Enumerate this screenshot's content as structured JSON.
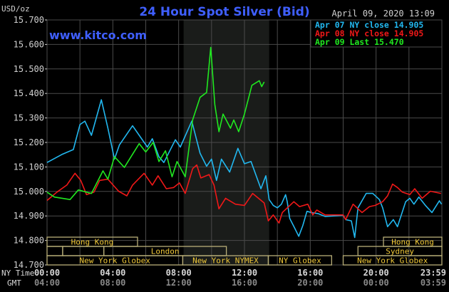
{
  "header": {
    "title": "24 Hour Spot Silver (Bid)",
    "timestamp": "April 09, 2020 13:09",
    "watermark": "www.kitco.com",
    "unit": "USD/oz"
  },
  "colors": {
    "background": "#000000",
    "title": "#3f5fff",
    "grid": "#4a4a4a",
    "shade": "#1a1c1a",
    "session_border": "#b8ae78",
    "session_text": "#f0c838",
    "apr07": "#22b8f0",
    "apr08": "#f01818",
    "apr09": "#20e820"
  },
  "chart_data": {
    "type": "line",
    "title": "24 Hour Spot Silver (Bid)",
    "ylabel": "USD/oz",
    "ylim": [
      14.7,
      15.7
    ],
    "yticks": [
      "15.700",
      "15.600",
      "15.500",
      "15.400",
      "15.300",
      "15.200",
      "15.100",
      "15.000",
      "14.900",
      "14.800",
      "14.700"
    ],
    "xlim_hours": [
      0,
      24
    ],
    "grid": true,
    "legend_placement": "top-right",
    "shaded_period_hours": [
      8.3,
      13.5
    ],
    "x_axis": {
      "rows": [
        {
          "label": "NY Time",
          "ticks": [
            "00:00",
            "04:00",
            "08:00",
            "12:00",
            "16:00",
            "20:00",
            "23:59"
          ]
        },
        {
          "label": "GMT",
          "ticks": [
            "04:00",
            "08:00",
            "12:00",
            "16:00",
            "20:00",
            "00:00",
            "03:59"
          ]
        }
      ]
    },
    "series": [
      {
        "name": "Apr 07 NY close 14.905",
        "color_key": "apr07",
        "points": [
          [
            0.0,
            15.118
          ],
          [
            0.9,
            15.151
          ],
          [
            1.6,
            15.171
          ],
          [
            2.0,
            15.273
          ],
          [
            2.3,
            15.287
          ],
          [
            2.7,
            15.229
          ],
          [
            3.3,
            15.374
          ],
          [
            3.7,
            15.258
          ],
          [
            4.1,
            15.132
          ],
          [
            4.4,
            15.19
          ],
          [
            5.2,
            15.268
          ],
          [
            6.1,
            15.181
          ],
          [
            6.4,
            15.215
          ],
          [
            6.8,
            15.142
          ],
          [
            7.1,
            15.118
          ],
          [
            7.8,
            15.211
          ],
          [
            8.1,
            15.181
          ],
          [
            8.8,
            15.287
          ],
          [
            9.3,
            15.156
          ],
          [
            9.7,
            15.103
          ],
          [
            10.0,
            15.132
          ],
          [
            10.3,
            15.045
          ],
          [
            10.6,
            15.132
          ],
          [
            11.1,
            15.079
          ],
          [
            11.6,
            15.176
          ],
          [
            12.0,
            15.113
          ],
          [
            12.4,
            15.122
          ],
          [
            13.0,
            15.011
          ],
          [
            13.3,
            15.064
          ],
          [
            13.5,
            14.967
          ],
          [
            13.75,
            14.943
          ],
          [
            14.0,
            14.933
          ],
          [
            14.25,
            14.948
          ],
          [
            14.5,
            14.987
          ],
          [
            14.6,
            14.958
          ],
          [
            14.75,
            14.89
          ],
          [
            15.05,
            14.851
          ],
          [
            15.3,
            14.817
          ],
          [
            15.55,
            14.861
          ],
          [
            15.8,
            14.919
          ],
          [
            16.05,
            14.914
          ],
          [
            16.5,
            14.909
          ],
          [
            16.9,
            14.898
          ],
          [
            18.0,
            14.902
          ],
          [
            18.15,
            14.885
          ],
          [
            18.5,
            14.88
          ],
          [
            18.7,
            14.812
          ],
          [
            18.9,
            14.933
          ],
          [
            19.4,
            14.992
          ],
          [
            19.8,
            14.992
          ],
          [
            20.2,
            14.967
          ],
          [
            20.4,
            14.933
          ],
          [
            20.7,
            14.856
          ],
          [
            21.05,
            14.885
          ],
          [
            21.3,
            14.856
          ],
          [
            21.8,
            14.958
          ],
          [
            22.05,
            14.972
          ],
          [
            22.3,
            14.948
          ],
          [
            22.6,
            14.977
          ],
          [
            23.0,
            14.943
          ],
          [
            23.4,
            14.914
          ],
          [
            23.85,
            14.962
          ],
          [
            23.98,
            14.948
          ]
        ]
      },
      {
        "name": "Apr 08 NY close 14.905",
        "color_key": "apr08",
        "points": [
          [
            0.0,
            14.963
          ],
          [
            0.6,
            14.997
          ],
          [
            1.2,
            15.026
          ],
          [
            1.7,
            15.074
          ],
          [
            2.05,
            15.045
          ],
          [
            2.4,
            14.987
          ],
          [
            2.85,
            14.997
          ],
          [
            3.2,
            15.045
          ],
          [
            3.7,
            15.05
          ],
          [
            4.35,
            15.001
          ],
          [
            4.85,
            14.982
          ],
          [
            5.2,
            15.026
          ],
          [
            5.9,
            15.074
          ],
          [
            6.4,
            15.026
          ],
          [
            6.75,
            15.064
          ],
          [
            7.25,
            15.011
          ],
          [
            7.7,
            15.016
          ],
          [
            8.05,
            15.035
          ],
          [
            8.4,
            14.992
          ],
          [
            8.85,
            15.093
          ],
          [
            9.1,
            15.108
          ],
          [
            9.35,
            15.055
          ],
          [
            9.85,
            15.069
          ],
          [
            10.15,
            15.026
          ],
          [
            10.45,
            14.929
          ],
          [
            10.85,
            14.972
          ],
          [
            11.45,
            14.948
          ],
          [
            12.0,
            14.943
          ],
          [
            12.5,
            14.992
          ],
          [
            13.2,
            14.953
          ],
          [
            13.45,
            14.88
          ],
          [
            13.75,
            14.904
          ],
          [
            14.1,
            14.871
          ],
          [
            14.3,
            14.914
          ],
          [
            15.0,
            14.958
          ],
          [
            15.35,
            14.938
          ],
          [
            15.85,
            14.948
          ],
          [
            16.15,
            14.904
          ],
          [
            16.4,
            14.924
          ],
          [
            16.9,
            14.904
          ],
          [
            18.0,
            14.904
          ],
          [
            18.15,
            14.885
          ],
          [
            18.6,
            14.948
          ],
          [
            19.15,
            14.914
          ],
          [
            19.6,
            14.938
          ],
          [
            19.95,
            14.943
          ],
          [
            20.4,
            14.958
          ],
          [
            20.7,
            14.982
          ],
          [
            21.0,
            15.03
          ],
          [
            21.3,
            15.016
          ],
          [
            21.6,
            14.997
          ],
          [
            22.05,
            14.987
          ],
          [
            22.35,
            15.011
          ],
          [
            22.8,
            14.972
          ],
          [
            23.3,
            15.001
          ],
          [
            23.95,
            14.992
          ]
        ]
      },
      {
        "name": "Apr 09 Last 15.470",
        "color_key": "apr09",
        "points": [
          [
            0.0,
            14.997
          ],
          [
            0.45,
            14.977
          ],
          [
            1.4,
            14.967
          ],
          [
            1.9,
            15.006
          ],
          [
            2.7,
            14.992
          ],
          [
            3.4,
            15.084
          ],
          [
            3.7,
            15.05
          ],
          [
            4.1,
            15.142
          ],
          [
            4.7,
            15.098
          ],
          [
            5.6,
            15.195
          ],
          [
            6.0,
            15.161
          ],
          [
            6.45,
            15.2
          ],
          [
            6.8,
            15.122
          ],
          [
            7.2,
            15.166
          ],
          [
            7.6,
            15.06
          ],
          [
            7.9,
            15.122
          ],
          [
            8.4,
            15.06
          ],
          [
            8.85,
            15.292
          ],
          [
            9.3,
            15.384
          ],
          [
            9.7,
            15.404
          ],
          [
            9.95,
            15.588
          ],
          [
            10.2,
            15.355
          ],
          [
            10.45,
            15.244
          ],
          [
            10.7,
            15.316
          ],
          [
            11.15,
            15.258
          ],
          [
            11.35,
            15.292
          ],
          [
            11.65,
            15.244
          ],
          [
            12.0,
            15.316
          ],
          [
            12.45,
            15.433
          ],
          [
            12.9,
            15.452
          ],
          [
            13.05,
            15.428
          ],
          [
            13.2,
            15.447
          ]
        ]
      }
    ],
    "sessions": [
      {
        "label": "Hong Kong",
        "row": 0,
        "start": 0,
        "end": 5.5
      },
      {
        "label": "Hong Kong",
        "row": 0,
        "start": 20.45,
        "end": 24
      },
      {
        "label": "",
        "row": 1,
        "start": 0,
        "end": 0.95
      },
      {
        "label": "",
        "row": 1,
        "start": 0.95,
        "end": 3.45
      },
      {
        "label": "London",
        "row": 1,
        "start": 3.45,
        "end": 10.9
      },
      {
        "label": "Sydney",
        "row": 1,
        "start": 18.9,
        "end": 24
      },
      {
        "label": "New York Globex",
        "row": 2,
        "start": 0,
        "end": 8.25
      },
      {
        "label": "New York NYMEX",
        "row": 2,
        "start": 8.25,
        "end": 13.45
      },
      {
        "label": "NY Globex",
        "row": 2,
        "start": 13.45,
        "end": 17.3
      },
      {
        "label": "New York Globex",
        "row": 2,
        "start": 18.0,
        "end": 24
      }
    ]
  }
}
